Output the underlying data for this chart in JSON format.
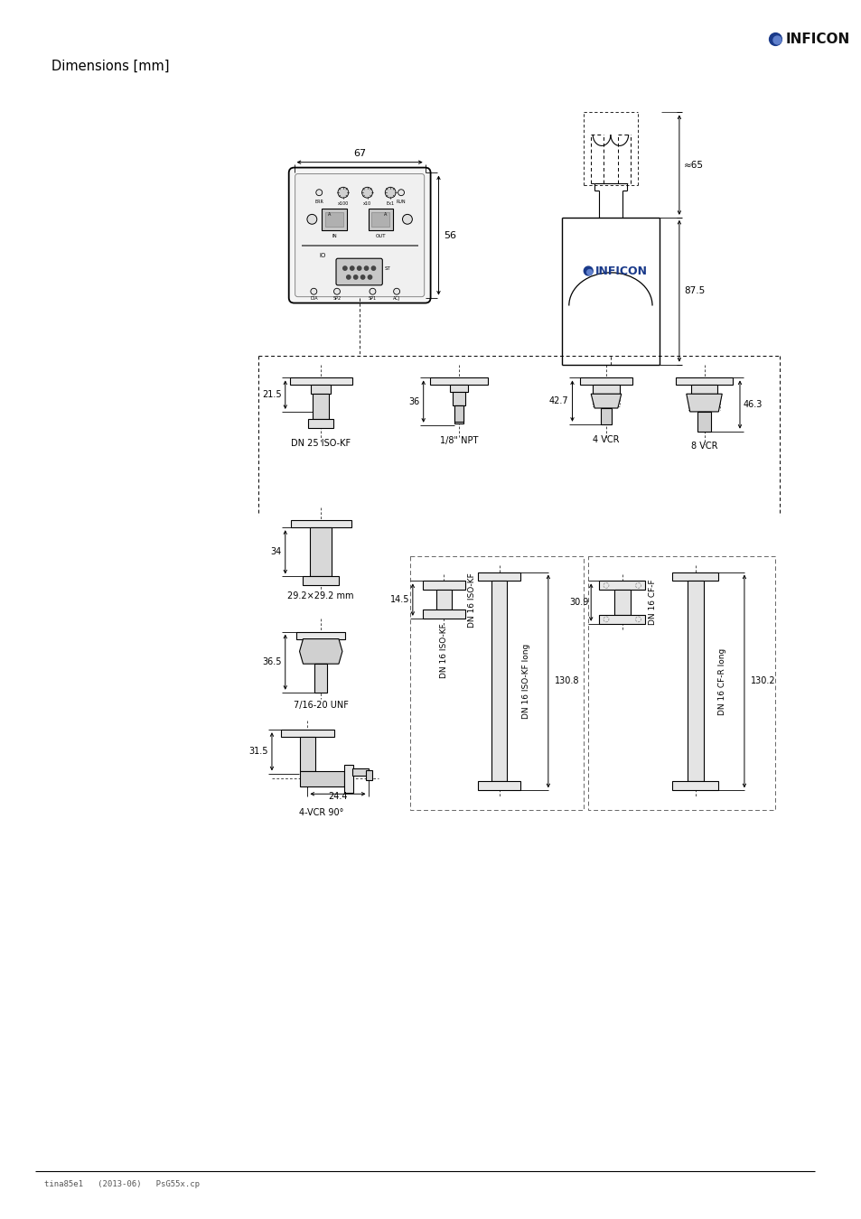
{
  "page_title": "Dimensions [mm]",
  "footer_left": "tina85e1   (2013-06)   PsG55x.cp",
  "background_color": "#ffffff",
  "line_color": "#000000",
  "blue_color": "#1a3a8a",
  "inficon_logo_text": "INFICON"
}
